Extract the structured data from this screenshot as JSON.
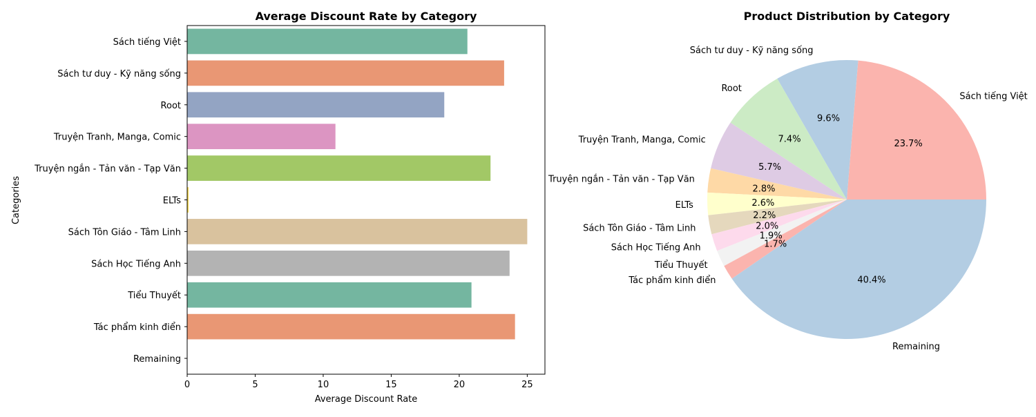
{
  "chart_data": [
    {
      "type": "bar",
      "orientation": "horizontal",
      "title": "Average Discount Rate by Category",
      "xlabel": "Average Discount Rate",
      "ylabel": "Categories",
      "xlim": [
        0,
        26.3
      ],
      "xticks": [
        "0",
        "5",
        "10",
        "15",
        "20",
        "25"
      ],
      "grid": false,
      "categories": [
        "Sách tiếng Việt",
        "Sách tư duy - Kỹ năng sống",
        "Root",
        "Truyện Tranh, Manga, Comic",
        "Truyện ngắn - Tản văn - Tạp Văn",
        "ELTs",
        "Sách Tôn Giáo - Tâm Linh",
        "Sách Học Tiếng Anh",
        "Tiểu Thuyết",
        "Tác phẩm kinh điển",
        "Remaining"
      ],
      "values": [
        20.6,
        23.3,
        18.9,
        10.9,
        22.3,
        0.1,
        25.0,
        23.7,
        20.9,
        24.1,
        0
      ],
      "colors": [
        "#74b6a0",
        "#e99774",
        "#93a4c3",
        "#dc95c2",
        "#a2c866",
        "#f8d848",
        "#d9c29e",
        "#b3b3b3",
        "#74b6a0",
        "#e99774",
        "#93a4c3"
      ]
    },
    {
      "type": "pie",
      "title": "Product Distribution by Category",
      "labels": [
        "Sách tiếng Việt",
        "Sách tư duy - Kỹ năng sống",
        "Root",
        "Truyện Tranh, Manga, Comic",
        "Truyện ngắn - Tản văn - Tạp Văn",
        "ELTs",
        "Sách Tôn Giáo - Tâm Linh",
        "Sách Học Tiếng Anh",
        "Tiểu Thuyết",
        "Tác phẩm kinh điển",
        "Remaining"
      ],
      "values": [
        23.7,
        9.6,
        7.4,
        5.7,
        2.8,
        2.6,
        2.2,
        2.0,
        1.9,
        1.7,
        40.4
      ],
      "percent_labels": [
        "23.7%",
        "9.6%",
        "7.4%",
        "5.7%",
        "2.8%",
        "2.6%",
        "2.2%",
        "2.0%",
        "1.9%",
        "1.7%",
        "40.4%"
      ],
      "colors": [
        "#fbb4ae",
        "#b3cde3",
        "#ccebc5",
        "#decbe4",
        "#fed9a6",
        "#ffffcc",
        "#e5d8bd",
        "#fddaec",
        "#f2f2f2",
        "#fbb4ae",
        "#b3cde3"
      ],
      "start_angle": 0,
      "direction": "counterclockwise"
    }
  ]
}
